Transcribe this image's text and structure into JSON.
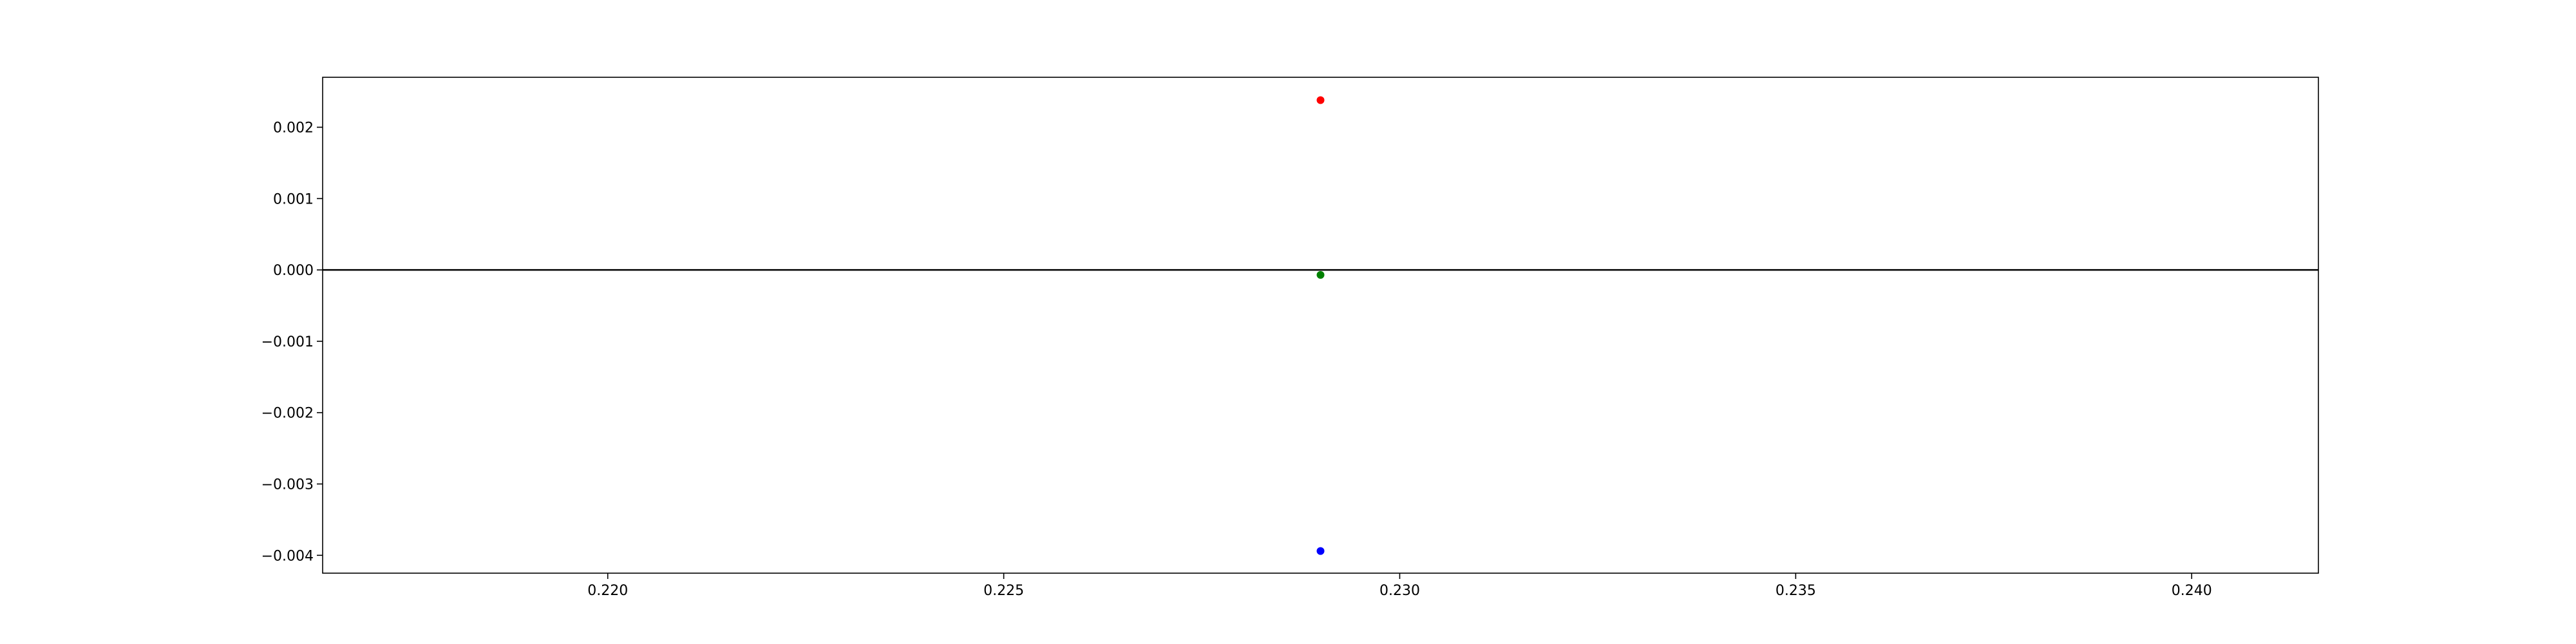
{
  "chart_data": {
    "type": "scatter",
    "title": "",
    "xlabel": "",
    "ylabel": "",
    "xlim": [
      0.2164,
      0.2416
    ],
    "ylim": [
      -0.00425,
      0.0027
    ],
    "xticks": [
      {
        "value": 0.22,
        "label": "0.220"
      },
      {
        "value": 0.225,
        "label": "0.225"
      },
      {
        "value": 0.23,
        "label": "0.230"
      },
      {
        "value": 0.235,
        "label": "0.235"
      },
      {
        "value": 0.24,
        "label": "0.240"
      }
    ],
    "yticks": [
      {
        "value": 0.002,
        "label": "0.002"
      },
      {
        "value": 0.001,
        "label": "0.001"
      },
      {
        "value": 0.0,
        "label": "0.000"
      },
      {
        "value": -0.001,
        "label": "−0.001"
      },
      {
        "value": -0.002,
        "label": "−0.002"
      },
      {
        "value": -0.003,
        "label": "−0.003"
      },
      {
        "value": -0.004,
        "label": "−0.004"
      }
    ],
    "hline": {
      "y": 0.0,
      "color": "#000000"
    },
    "grid": false,
    "legend": "none",
    "series": [
      {
        "color": "#ff0000",
        "points": [
          {
            "x": 0.229,
            "y": 0.00238
          }
        ]
      },
      {
        "color": "#008000",
        "points": [
          {
            "x": 0.229,
            "y": -7e-05
          }
        ]
      },
      {
        "color": "#0000ff",
        "points": [
          {
            "x": 0.229,
            "y": -0.00394
          }
        ]
      }
    ]
  }
}
